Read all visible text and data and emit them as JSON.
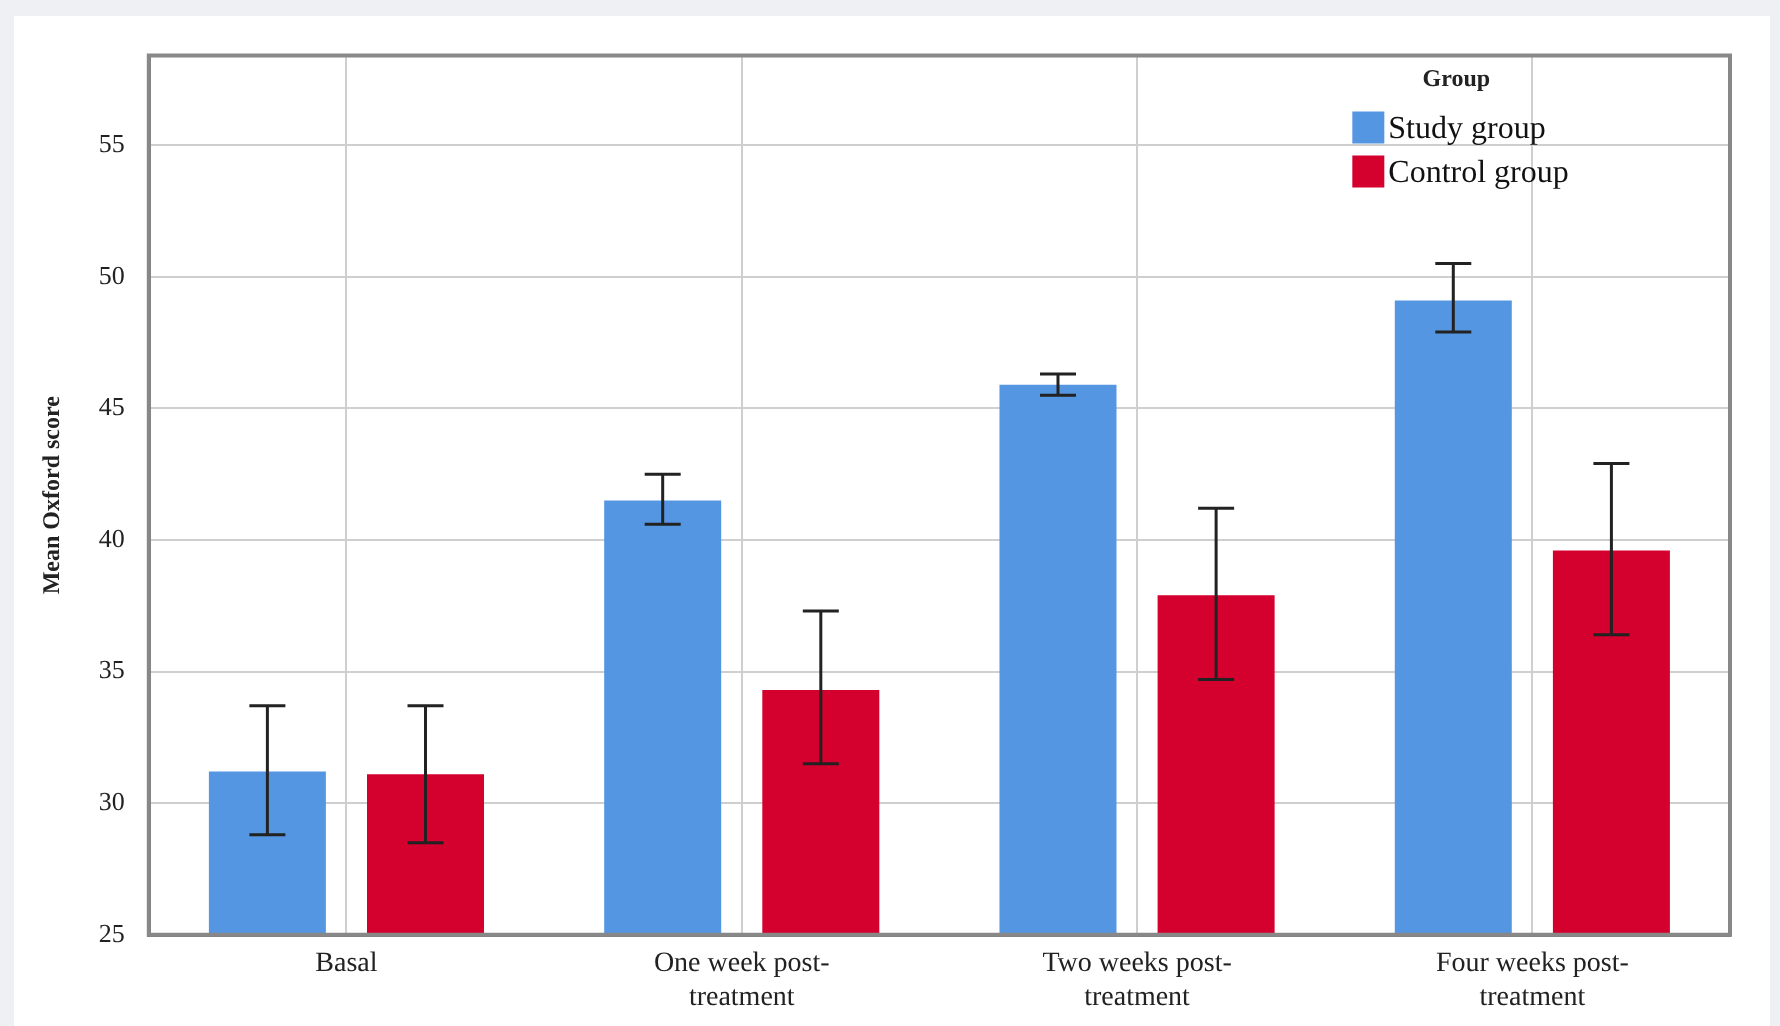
{
  "chart_data": {
    "type": "bar",
    "ylabel": "Mean Oxford score",
    "legend_title": "Group",
    "categories": [
      "Basal",
      "One week post-treatment",
      "Two weeks post-treatment",
      "Four weeks post-treatment"
    ],
    "series": [
      {
        "name": "Study group",
        "color": "#5596e3",
        "values": [
          31.2,
          41.5,
          45.9,
          49.1
        ],
        "errors": [
          [
            28.8,
            33.7
          ],
          [
            40.6,
            42.5
          ],
          [
            45.5,
            46.3
          ],
          [
            47.9,
            50.5
          ]
        ]
      },
      {
        "name": "Control group",
        "color": "#d4002e",
        "values": [
          31.1,
          34.3,
          37.9,
          39.6
        ],
        "errors": [
          [
            28.5,
            33.7
          ],
          [
            31.5,
            37.3
          ],
          [
            34.7,
            41.2
          ],
          [
            36.4,
            42.9
          ]
        ]
      }
    ],
    "ylim": [
      25,
      58.4
    ],
    "yticks": [
      25,
      30,
      35,
      40,
      45,
      50,
      55
    ],
    "grid": true,
    "legend": "top right"
  }
}
